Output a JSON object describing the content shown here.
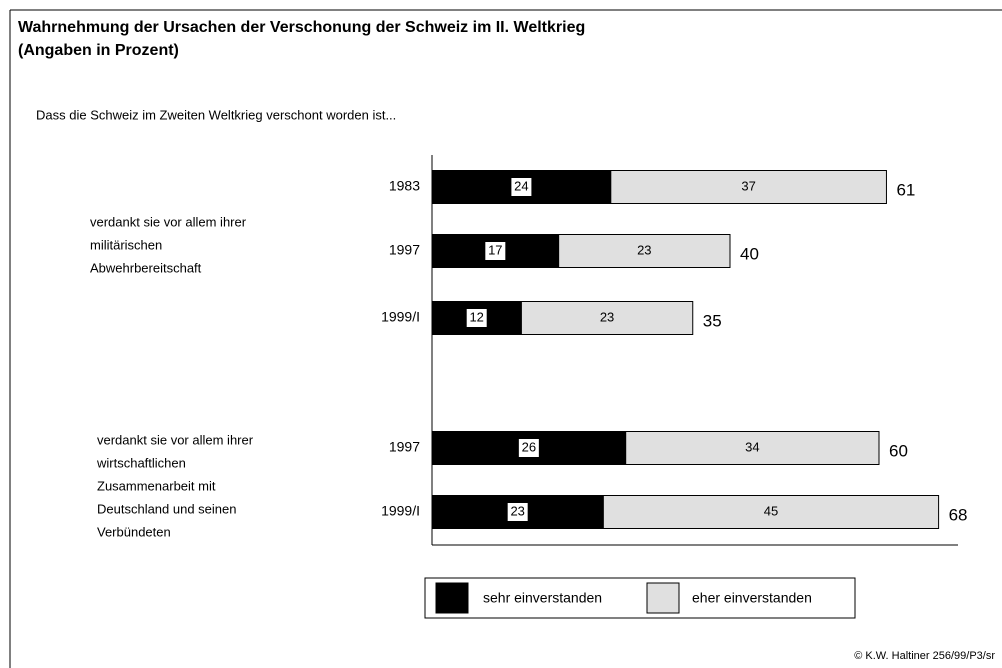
{
  "chart_data": {
    "type": "stacked_barh",
    "title": [
      "Wahrnehmung der Ursachen der Verschonung der Schweiz im II. Weltkrieg",
      "(Angaben in Prozent)"
    ],
    "subtitle": "Dass die Schweiz im Zweiten Weltkrieg verschont worden ist...",
    "groups": [
      {
        "lines": [
          "verdankt sie vor allem ihrer",
          "militärischen",
          "Abwehrbereitschaft"
        ]
      },
      {
        "lines": [
          "verdankt sie vor allem ihrer",
          "wirtschaftlichen",
          "Zusammenarbeit mit",
          "Deutschland und seinen",
          "Verbündeten"
        ]
      }
    ],
    "categories": [
      "1983",
      "1997",
      "1999/I",
      "1997",
      "1999/I"
    ],
    "series": [
      {
        "name": "sehr einverstanden",
        "color": "#000000",
        "values": [
          24,
          17,
          12,
          26,
          23
        ]
      },
      {
        "name": "eher einverstanden",
        "color": "#e0e0e0",
        "values": [
          37,
          23,
          23,
          34,
          45
        ]
      }
    ],
    "totals": [
      61,
      40,
      35,
      60,
      68
    ],
    "footer": "© K.W. Haltiner 256/99/P3/sr"
  }
}
